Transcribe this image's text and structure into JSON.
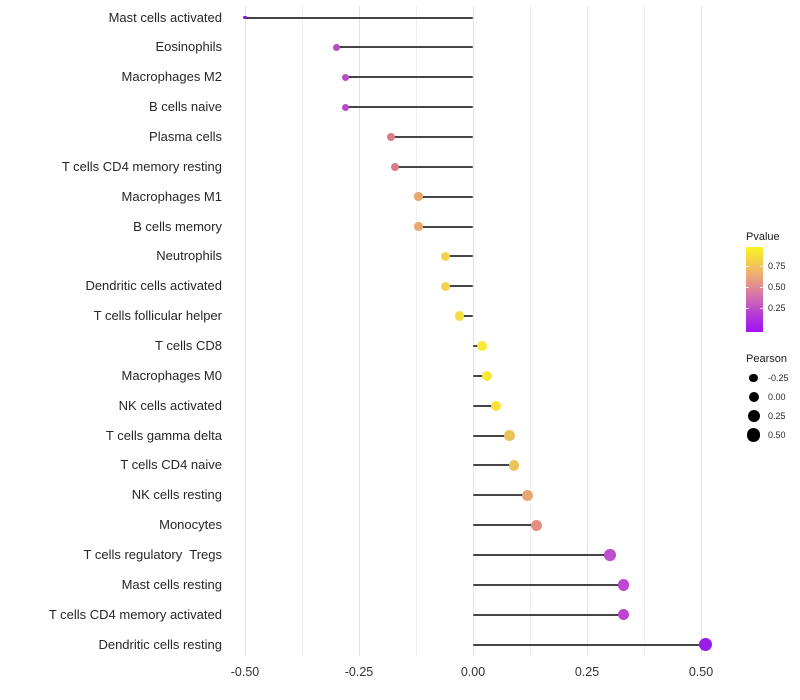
{
  "chart_data": {
    "type": "scatter",
    "variant": "lollipop",
    "orientation": "horizontal",
    "title": "",
    "xlabel": "",
    "ylabel": "",
    "x_tick_labels": [
      "-0.50",
      "-0.25",
      "0.00",
      "0.25",
      "0.50"
    ],
    "x_tick_values": [
      -0.5,
      -0.25,
      0.0,
      0.25,
      0.5
    ],
    "xlim": [
      -0.55,
      0.55
    ],
    "grid": true,
    "rows": [
      {
        "label": "Mast cells activated",
        "pearson": -0.5,
        "dot_color": "#8d12e4",
        "dot_diameter": 3.5
      },
      {
        "label": "Eosinophils",
        "pearson": -0.3,
        "dot_color": "#b94ac6",
        "dot_diameter": 7
      },
      {
        "label": "Macrophages M2",
        "pearson": -0.28,
        "dot_color": "#bb4cc8",
        "dot_diameter": 7
      },
      {
        "label": "B cells naive",
        "pearson": -0.28,
        "dot_color": "#ba4bc7",
        "dot_diameter": 7
      },
      {
        "label": "Plasma cells",
        "pearson": -0.18,
        "dot_color": "#d97c86",
        "dot_diameter": 8
      },
      {
        "label": "T cells CD4 memory resting",
        "pearson": -0.17,
        "dot_color": "#d97c86",
        "dot_diameter": 8
      },
      {
        "label": "Macrophages M1",
        "pearson": -0.12,
        "dot_color": "#eaa76c",
        "dot_diameter": 8.5
      },
      {
        "label": "B cells memory",
        "pearson": -0.12,
        "dot_color": "#eaa76c",
        "dot_diameter": 8.5
      },
      {
        "label": "Neutrophils",
        "pearson": -0.06,
        "dot_color": "#f2d24f",
        "dot_diameter": 9
      },
      {
        "label": "Dendritic cells activated",
        "pearson": -0.06,
        "dot_color": "#f2d24f",
        "dot_diameter": 9
      },
      {
        "label": "T cells follicular helper",
        "pearson": -0.03,
        "dot_color": "#f5de41",
        "dot_diameter": 9.5
      },
      {
        "label": "T cells CD8",
        "pearson": 0.02,
        "dot_color": "#f9e930",
        "dot_diameter": 10
      },
      {
        "label": "Macrophages M0",
        "pearson": 0.03,
        "dot_color": "#f9e930",
        "dot_diameter": 10
      },
      {
        "label": "NK cells activated",
        "pearson": 0.05,
        "dot_color": "#f6e139",
        "dot_diameter": 10
      },
      {
        "label": "T cells gamma delta",
        "pearson": 0.08,
        "dot_color": "#ecc25a",
        "dot_diameter": 10.5
      },
      {
        "label": "T cells CD4 naive",
        "pearson": 0.09,
        "dot_color": "#ecc25a",
        "dot_diameter": 10.5
      },
      {
        "label": "NK cells resting",
        "pearson": 0.12,
        "dot_color": "#e6a873",
        "dot_diameter": 11
      },
      {
        "label": "Monocytes",
        "pearson": 0.14,
        "dot_color": "#e48d80",
        "dot_diameter": 11
      },
      {
        "label": "T cells regulatory  Tregs",
        "pearson": 0.3,
        "dot_color": "#bd4ecd",
        "dot_diameter": 11.5
      },
      {
        "label": "Mast cells resting",
        "pearson": 0.33,
        "dot_color": "#bd48d1",
        "dot_diameter": 11.5
      },
      {
        "label": "T cells CD4 memory activated",
        "pearson": 0.33,
        "dot_color": "#bb44d2",
        "dot_diameter": 11.5
      },
      {
        "label": "Dendritic cells resting",
        "pearson": 0.51,
        "dot_color": "#9a1ce8",
        "dot_diameter": 13
      }
    ],
    "legend": {
      "color_legend": {
        "title": "Pvalue",
        "tick_labels": [
          "0.75",
          "0.50",
          "0.25"
        ],
        "gradient_top_to_bottom": [
          "#f8f523",
          "#f5d048",
          "#edaa74",
          "#dd8399",
          "#c95cc0",
          "#b032de",
          "#a112f0"
        ]
      },
      "size_legend": {
        "title": "Pearson",
        "entries": [
          {
            "label": "-0.25",
            "diameter": 8.3
          },
          {
            "label": "0.00",
            "diameter": 10
          },
          {
            "label": "0.25",
            "diameter": 12
          },
          {
            "label": "0.50",
            "diameter": 13.3
          }
        ]
      }
    }
  },
  "colors": {
    "background": "#ffffff",
    "stem": "#454545",
    "grid_major": "#e3e3e3",
    "grid_minor": "#f1f1f1",
    "axis_text": "#333333",
    "category_text": "#262626",
    "legend_size_circle": "#000000"
  }
}
